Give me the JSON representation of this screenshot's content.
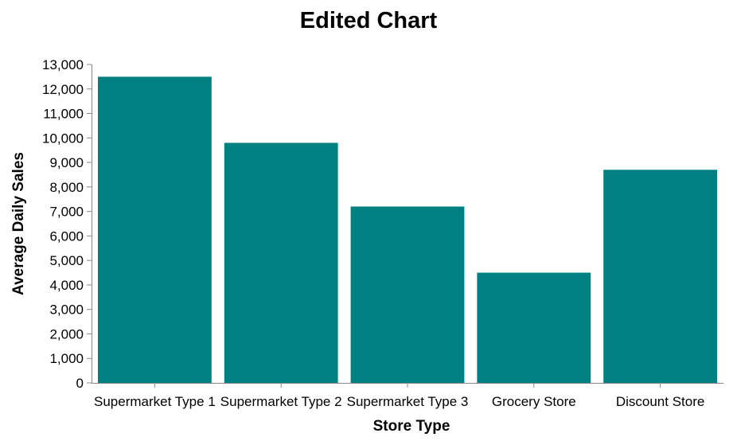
{
  "chart_data": {
    "type": "bar",
    "title": "Edited Chart",
    "xlabel": "Store Type",
    "ylabel": "Average Daily Sales",
    "categories": [
      "Supermarket Type 1",
      "Supermarket Type 2",
      "Supermarket Type 3",
      "Grocery Store",
      "Discount Store"
    ],
    "values": [
      12500,
      9800,
      7200,
      4500,
      8700
    ],
    "ylim": [
      0,
      13000
    ],
    "yticks": [
      0,
      1000,
      2000,
      3000,
      4000,
      5000,
      6000,
      7000,
      8000,
      9000,
      10000,
      11000,
      12000,
      13000
    ],
    "ytick_labels": [
      "0",
      "1,000",
      "2,000",
      "3,000",
      "4,000",
      "5,000",
      "6,000",
      "7,000",
      "8,000",
      "9,000",
      "10,000",
      "11,000",
      "12,000",
      "13,000"
    ],
    "grid": false,
    "legend": "none",
    "bar_color": "#008080"
  }
}
